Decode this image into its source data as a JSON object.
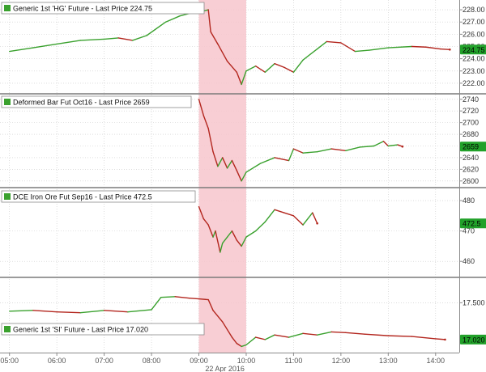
{
  "chart_data": [
    {
      "type": "line",
      "legend": "Generic 1st 'HG' Future - Last Price 224.75",
      "last_label": "224.75",
      "yticks": [
        222.0,
        223.0,
        224.0,
        225.0,
        226.0,
        227.0,
        228.0
      ],
      "ytick_labels": [
        "222.00",
        "223.00",
        "224.00",
        "225.00",
        "226.00",
        "227.00",
        "228.00"
      ],
      "ylim": [
        221.2,
        228.8
      ],
      "series": [
        {
          "points": [
            [
              5.0,
              224.6
            ],
            [
              5.5,
              224.9
            ],
            [
              6.0,
              225.2
            ],
            [
              6.5,
              225.5
            ],
            [
              7.0,
              225.6
            ],
            [
              7.3,
              225.7
            ],
            [
              7.6,
              225.5
            ],
            [
              7.9,
              225.9
            ],
            [
              8.3,
              227.0
            ],
            [
              8.6,
              227.5
            ],
            [
              8.9,
              227.8
            ],
            [
              9.1,
              227.9
            ],
            [
              9.2,
              228.0
            ],
            [
              9.25,
              226.2
            ],
            [
              9.4,
              225.2
            ],
            [
              9.6,
              223.8
            ],
            [
              9.8,
              222.9
            ],
            [
              9.9,
              221.9
            ],
            [
              10.0,
              223.0
            ],
            [
              10.2,
              223.4
            ],
            [
              10.4,
              222.9
            ],
            [
              10.6,
              223.6
            ],
            [
              10.8,
              223.3
            ],
            [
              11.0,
              222.9
            ],
            [
              11.2,
              223.9
            ],
            [
              11.5,
              224.8
            ],
            [
              11.7,
              225.4
            ],
            [
              12.0,
              225.3
            ],
            [
              12.3,
              224.6
            ],
            [
              12.6,
              224.7
            ],
            [
              13.0,
              224.9
            ],
            [
              13.5,
              225.0
            ],
            [
              13.8,
              224.95
            ],
            [
              14.1,
              224.8
            ],
            [
              14.3,
              224.75
            ]
          ]
        }
      ]
    },
    {
      "type": "line",
      "legend": "Deformed Bar Fut Oct16 - Last Price 2659",
      "last_label": "2659",
      "yticks": [
        2600,
        2620,
        2640,
        2660,
        2680,
        2700,
        2720,
        2740
      ],
      "ytick_labels": [
        "2600",
        "2620",
        "2640",
        "2660",
        "2680",
        "2700",
        "2720",
        "2740"
      ],
      "ylim": [
        2590,
        2748
      ],
      "series": [
        {
          "points": [
            [
              9.0,
              2740
            ],
            [
              9.1,
              2712
            ],
            [
              9.2,
              2690
            ],
            [
              9.3,
              2650
            ],
            [
              9.4,
              2625
            ],
            [
              9.5,
              2640
            ],
            [
              9.6,
              2622
            ],
            [
              9.7,
              2635
            ],
            [
              9.8,
              2618
            ],
            [
              9.9,
              2600
            ],
            [
              10.0,
              2615
            ],
            [
              10.3,
              2630
            ],
            [
              10.6,
              2640
            ],
            [
              10.9,
              2635
            ],
            [
              11.0,
              2655
            ],
            [
              11.2,
              2648
            ],
            [
              11.5,
              2650
            ],
            [
              11.8,
              2655
            ],
            [
              12.1,
              2652
            ],
            [
              12.4,
              2658
            ],
            [
              12.7,
              2660
            ],
            [
              12.9,
              2668
            ],
            [
              13.0,
              2660
            ],
            [
              13.2,
              2662
            ],
            [
              13.3,
              2659
            ]
          ]
        }
      ]
    },
    {
      "type": "line",
      "legend": "DCE Iron Ore Fut Sep16 - Last Price 472.5",
      "last_label": "472.5",
      "yticks": [
        460,
        470,
        480
      ],
      "ytick_labels": [
        "460",
        "470",
        "480"
      ],
      "ylim": [
        455,
        484
      ],
      "series": [
        {
          "points": [
            [
              9.0,
              478
            ],
            [
              9.1,
              474
            ],
            [
              9.2,
              472
            ],
            [
              9.3,
              468
            ],
            [
              9.35,
              470
            ],
            [
              9.45,
              463
            ],
            [
              9.5,
              466
            ],
            [
              9.6,
              468
            ],
            [
              9.7,
              470
            ],
            [
              9.8,
              467
            ],
            [
              9.9,
              465
            ],
            [
              10.0,
              468
            ],
            [
              10.2,
              470
            ],
            [
              10.4,
              473
            ],
            [
              10.6,
              477
            ],
            [
              10.8,
              476
            ],
            [
              11.0,
              475
            ],
            [
              11.2,
              472
            ],
            [
              11.4,
              476
            ],
            [
              11.5,
              472.5
            ]
          ]
        }
      ]
    },
    {
      "type": "line",
      "legend": "Generic 1st 'SI' Future - Last Price 17.020",
      "last_label": "17.020",
      "yticks": [
        17.5
      ],
      "ytick_labels": [
        "17.500"
      ],
      "ylim": [
        16.85,
        17.82
      ],
      "series": [
        {
          "points": [
            [
              5.0,
              17.39
            ],
            [
              5.5,
              17.4
            ],
            [
              6.0,
              17.38
            ],
            [
              6.5,
              17.37
            ],
            [
              7.0,
              17.4
            ],
            [
              7.5,
              17.38
            ],
            [
              8.0,
              17.41
            ],
            [
              8.2,
              17.57
            ],
            [
              8.5,
              17.58
            ],
            [
              8.8,
              17.56
            ],
            [
              9.0,
              17.55
            ],
            [
              9.2,
              17.54
            ],
            [
              9.3,
              17.4
            ],
            [
              9.5,
              17.25
            ],
            [
              9.7,
              17.05
            ],
            [
              9.8,
              16.97
            ],
            [
              9.9,
              16.93
            ],
            [
              10.0,
              16.95
            ],
            [
              10.2,
              17.05
            ],
            [
              10.4,
              17.02
            ],
            [
              10.6,
              17.08
            ],
            [
              10.9,
              17.05
            ],
            [
              11.2,
              17.1
            ],
            [
              11.5,
              17.08
            ],
            [
              11.8,
              17.12
            ],
            [
              12.1,
              17.11
            ],
            [
              12.5,
              17.09
            ],
            [
              13.0,
              17.07
            ],
            [
              13.5,
              17.06
            ],
            [
              14.0,
              17.03
            ],
            [
              14.2,
              17.02
            ]
          ]
        }
      ]
    }
  ],
  "x_axis": {
    "range": [
      4.8,
      14.5
    ],
    "ticks": [
      5,
      6,
      7,
      8,
      9,
      10,
      11,
      12,
      13,
      14
    ],
    "tick_labels": [
      "05:00",
      "06:00",
      "07:00",
      "08:00",
      "09:00",
      "10:00",
      "11:00",
      "12:00",
      "13:00",
      "14:00"
    ],
    "date_label": "22 Apr 2016"
  },
  "highlight": {
    "from": 9.0,
    "to": 10.0,
    "color": "#f7c5cd"
  },
  "colors": {
    "up": "#3aa12e",
    "down": "#b3261e",
    "legend_box": "#3aa12e",
    "price_tag": "#22a12a"
  }
}
